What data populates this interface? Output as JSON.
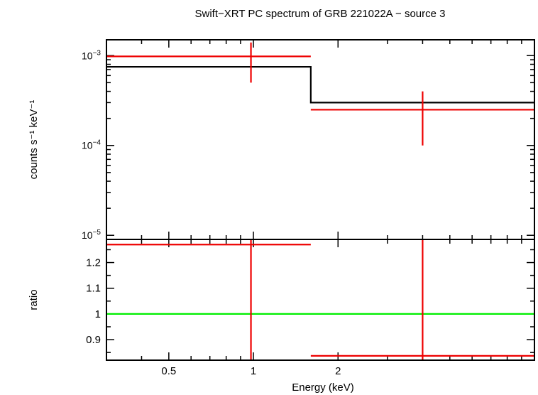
{
  "chart_data": [
    {
      "type": "line",
      "title": "Swift−XRT PC spectrum of GRB 221022A − source 3",
      "ylabel": "counts s⁻¹ keV⁻¹",
      "xlabel": "",
      "xscale": "log",
      "yscale": "log",
      "xlim": [
        0.3,
        10
      ],
      "ylim": [
        9e-06,
        0.0015
      ],
      "ytick_labels": [
        {
          "base": "10",
          "exp": "−3",
          "value": 0.001
        },
        {
          "base": "10",
          "exp": "−4",
          "value": 0.0001
        },
        {
          "base": "10",
          "exp": "−5",
          "value": 1e-05
        }
      ],
      "data": {
        "name": "",
        "color": "#ee0000",
        "points": [
          {
            "x": 0.98,
            "xlo": 0.3,
            "xhi": 1.6,
            "y": 0.00098,
            "ylo": 0.0005,
            "yhi": 0.0014
          },
          {
            "x": 4.0,
            "xlo": 1.6,
            "xhi": 10,
            "y": 0.00025,
            "ylo": 0.0001,
            "yhi": 0.0004
          }
        ]
      },
      "model": {
        "name": "",
        "color": "#000000",
        "steps": [
          {
            "xlo": 0.3,
            "xhi": 1.6,
            "y": 0.00075
          },
          {
            "xlo": 1.6,
            "xhi": 10,
            "y": 0.0003
          }
        ]
      }
    },
    {
      "type": "line",
      "title": "",
      "ylabel": "ratio",
      "xlabel": "Energy (keV)",
      "xscale": "log",
      "xlim": [
        0.3,
        10
      ],
      "ylim": [
        0.82,
        1.29
      ],
      "yticks": [
        0.9,
        1,
        1.1,
        1.2
      ],
      "ytick_labels": [
        "0.9",
        "1",
        "1.1",
        "1.2"
      ],
      "xticks": [
        0.5,
        1,
        2
      ],
      "xtick_labels": [
        "0.5",
        "1",
        "2"
      ],
      "reference_line": {
        "y": 1,
        "color": "#00ee00"
      },
      "data": {
        "name": "",
        "color": "#ee0000",
        "points": [
          {
            "x": 0.98,
            "xlo": 0.3,
            "xhi": 1.6,
            "y": 1.27,
            "ylo": 0.82,
            "yhi": 1.29
          },
          {
            "x": 4.0,
            "xlo": 1.6,
            "xhi": 10,
            "y": 0.837,
            "ylo": 0.82,
            "yhi": 1.29
          }
        ]
      }
    }
  ]
}
